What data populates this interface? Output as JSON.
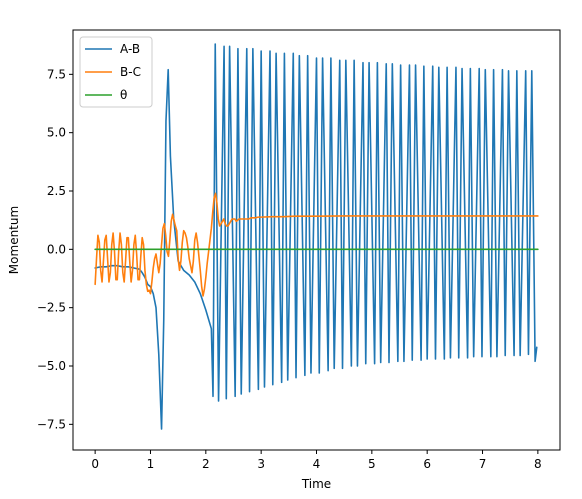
{
  "chart_data": {
    "type": "line",
    "title": "",
    "xlabel": "Time",
    "ylabel": "Momentum",
    "xlim": [
      -0.4,
      8.4
    ],
    "ylim": [
      -8.6,
      9.4
    ],
    "xticks": [
      0,
      1,
      2,
      3,
      4,
      5,
      6,
      7,
      8
    ],
    "xtick_labels": [
      "0",
      "1",
      "2",
      "3",
      "4",
      "5",
      "6",
      "7",
      "8"
    ],
    "yticks": [
      -7.5,
      -5.0,
      -2.5,
      0.0,
      2.5,
      5.0,
      7.5
    ],
    "ytick_labels": [
      "−7.5",
      "−5.0",
      "−2.5",
      "0.0",
      "2.5",
      "5.0",
      "7.5"
    ],
    "grid": false,
    "legend_position": "top-left",
    "series": [
      {
        "name": "A-B",
        "color": "#1f77b4",
        "x": [
          0,
          0.1,
          0.2,
          0.3,
          0.4,
          0.5,
          0.6,
          0.7,
          0.8,
          0.85,
          0.9,
          0.95,
          1.0,
          1.05,
          1.1,
          1.15,
          1.2,
          1.24,
          1.28,
          1.32,
          1.36,
          1.42,
          1.5,
          1.6,
          1.7,
          1.8,
          1.9,
          2.0,
          2.1,
          2.13,
          2.17,
          2.23,
          2.33,
          2.37,
          2.43,
          2.53,
          2.58,
          2.64,
          2.74,
          2.79,
          2.85,
          2.95,
          3.0,
          3.06,
          3.16,
          3.21,
          3.27,
          3.37,
          3.42,
          3.48,
          3.58,
          3.63,
          3.69,
          3.79,
          3.84,
          3.9,
          4.0,
          4.05,
          4.11,
          4.21,
          4.26,
          4.32,
          4.42,
          4.47,
          4.53,
          4.63,
          4.68,
          4.74,
          4.84,
          4.89,
          4.95,
          5.05,
          5.1,
          5.16,
          5.26,
          5.31,
          5.37,
          5.47,
          5.52,
          5.58,
          5.68,
          5.73,
          5.79,
          5.89,
          5.94,
          6.0,
          6.1,
          6.15,
          6.21,
          6.31,
          6.36,
          6.42,
          6.52,
          6.57,
          6.63,
          6.73,
          6.78,
          6.84,
          6.94,
          6.99,
          7.05,
          7.15,
          7.2,
          7.26,
          7.36,
          7.41,
          7.47,
          7.57,
          7.62,
          7.68,
          7.78,
          7.83,
          7.89,
          7.95,
          7.98
        ],
        "y": [
          -0.8,
          -0.75,
          -0.75,
          -0.7,
          -0.7,
          -0.75,
          -0.75,
          -0.8,
          -0.85,
          -1.0,
          -1.2,
          -1.5,
          -1.6,
          -1.9,
          -2.5,
          -4.5,
          -7.7,
          -3.0,
          5.5,
          7.7,
          4.0,
          1.3,
          -0.5,
          -0.9,
          -1.1,
          -1.4,
          -1.9,
          -2.6,
          -3.4,
          -6.3,
          8.8,
          -6.5,
          8.7,
          -6.4,
          8.7,
          -6.3,
          8.6,
          -6.2,
          8.6,
          -6.1,
          8.6,
          -6.0,
          8.5,
          -5.9,
          8.5,
          -5.8,
          8.4,
          -5.7,
          8.4,
          -5.6,
          8.4,
          -5.5,
          8.3,
          -5.4,
          8.3,
          -5.3,
          8.2,
          -5.3,
          8.2,
          -5.2,
          8.2,
          -5.1,
          8.1,
          -5.1,
          8.1,
          -5.0,
          8.1,
          -5.0,
          8.0,
          -4.9,
          8.0,
          -4.9,
          8.0,
          -4.85,
          7.95,
          -4.85,
          7.95,
          -4.8,
          7.9,
          -4.8,
          7.9,
          -4.75,
          7.9,
          -4.75,
          7.85,
          -4.7,
          7.85,
          -4.7,
          7.8,
          -4.7,
          7.8,
          -4.65,
          7.8,
          -4.65,
          7.75,
          -4.65,
          7.75,
          -4.6,
          7.75,
          -4.6,
          7.7,
          -4.6,
          7.7,
          -4.6,
          7.7,
          -4.55,
          7.65,
          -4.55,
          7.65,
          -4.55,
          7.65,
          -4.5,
          7.65,
          -4.8,
          -4.2
        ]
      },
      {
        "name": "B-C",
        "color": "#ff7f0e",
        "x": [
          0,
          0.025,
          0.05,
          0.075,
          0.1,
          0.125,
          0.15,
          0.175,
          0.2,
          0.225,
          0.25,
          0.275,
          0.3,
          0.325,
          0.35,
          0.375,
          0.4,
          0.425,
          0.45,
          0.475,
          0.5,
          0.525,
          0.55,
          0.575,
          0.6,
          0.625,
          0.65,
          0.675,
          0.7,
          0.725,
          0.75,
          0.775,
          0.8,
          0.825,
          0.85,
          0.875,
          0.9,
          0.925,
          0.95,
          0.975,
          1.0,
          1.025,
          1.05,
          1.075,
          1.1,
          1.125,
          1.15,
          1.175,
          1.2,
          1.225,
          1.25,
          1.275,
          1.3,
          1.325,
          1.35,
          1.375,
          1.4,
          1.425,
          1.45,
          1.475,
          1.5,
          1.525,
          1.55,
          1.575,
          1.6,
          1.625,
          1.65,
          1.675,
          1.7,
          1.725,
          1.75,
          1.775,
          1.8,
          1.825,
          1.85,
          1.875,
          1.9,
          1.925,
          1.95,
          1.975,
          2.0,
          2.025,
          2.05,
          2.075,
          2.1,
          2.125,
          2.15,
          2.175,
          2.2,
          2.225,
          2.25,
          2.275,
          2.3,
          2.325,
          2.35,
          2.375,
          2.4,
          2.425,
          2.45,
          2.475,
          2.5,
          2.525,
          2.55,
          2.575,
          2.6,
          2.625,
          2.65,
          2.675,
          2.7,
          2.725,
          2.75,
          2.775,
          2.8,
          2.825,
          2.85,
          2.875,
          2.9,
          2.925,
          2.95,
          2.975,
          3.0,
          3.2,
          3.4,
          3.6,
          3.8,
          4.0,
          4.5,
          5.0,
          5.5,
          6.0,
          6.5,
          7.0,
          7.5,
          8.0
        ],
        "y": [
          -1.5,
          -0.4,
          0.6,
          0.3,
          -0.9,
          -1.4,
          -0.5,
          0.4,
          0.6,
          -0.4,
          -1.4,
          -1.0,
          0.2,
          0.7,
          -0.1,
          -1.3,
          -1.3,
          -0.1,
          0.7,
          0.2,
          -1.0,
          -1.4,
          -0.5,
          0.5,
          0.5,
          -0.5,
          -1.4,
          -0.9,
          0.2,
          0.6,
          -0.2,
          -1.3,
          -1.3,
          -0.3,
          0.5,
          0.2,
          -0.9,
          -1.5,
          -1.8,
          -1.75,
          -1.9,
          -1.4,
          -0.8,
          -0.4,
          -0.2,
          -0.6,
          -1.0,
          -0.6,
          0.2,
          0.9,
          1.1,
          0.6,
          -0.1,
          -0.3,
          0.4,
          1.2,
          1.5,
          1.25,
          1.0,
          0.8,
          -0.4,
          -0.9,
          -0.5,
          0.3,
          0.8,
          0.7,
          0.5,
          0.1,
          -0.4,
          -0.7,
          -1.0,
          -0.5,
          0.4,
          0.7,
          0.3,
          -0.3,
          -0.9,
          -1.6,
          -2.0,
          -1.7,
          -1.2,
          -0.6,
          -0.1,
          0.4,
          0.9,
          1.6,
          2.2,
          2.4,
          2.0,
          1.3,
          1.0,
          1.1,
          1.2,
          1.3,
          1.1,
          1.0,
          1.0,
          1.1,
          1.2,
          1.3,
          1.3,
          1.3,
          1.2,
          1.25,
          1.3,
          1.3,
          1.3,
          1.3,
          1.3,
          1.3,
          1.3,
          1.3,
          1.33,
          1.35,
          1.35,
          1.35,
          1.35,
          1.37,
          1.38,
          1.38,
          1.38,
          1.4,
          1.4,
          1.42,
          1.42,
          1.42,
          1.43,
          1.43,
          1.43,
          1.43,
          1.43,
          1.43,
          1.43,
          1.43
        ]
      },
      {
        "name": "θ",
        "color": "#2ca02c",
        "x": [
          0,
          8
        ],
        "y": [
          0,
          0
        ]
      }
    ]
  }
}
